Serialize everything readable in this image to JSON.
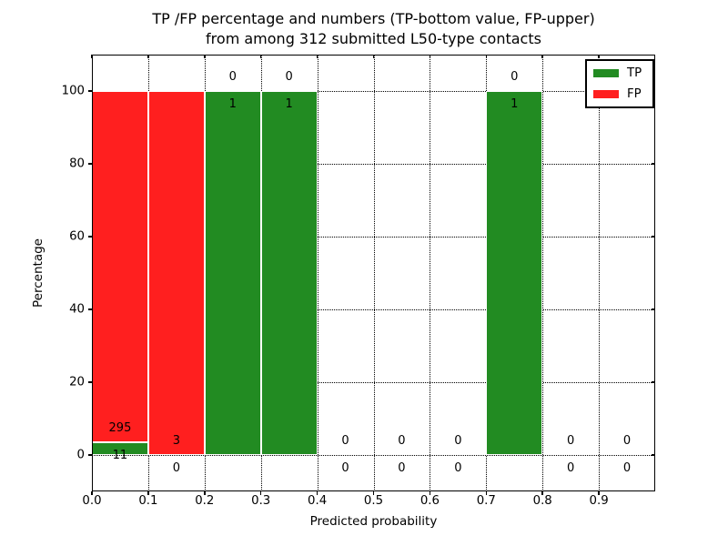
{
  "title": {
    "line1": "TP /FP percentage and numbers (TP-bottom value, FP-upper)",
    "line2": "from among 312 submitted L50-type contacts"
  },
  "chart_data": {
    "type": "bar",
    "stacked": true,
    "title": "TP /FP percentage and numbers (TP-bottom value, FP-upper) from among 312 submitted L50-type contacts",
    "xlabel": "Predicted probability",
    "ylabel": "Percentage",
    "xlim": [
      0.0,
      1.0
    ],
    "ylim": [
      -10,
      110
    ],
    "x_ticks": [
      "0.0",
      "0.1",
      "0.2",
      "0.3",
      "0.4",
      "0.5",
      "0.6",
      "0.7",
      "0.8",
      "0.9"
    ],
    "y_ticks": [
      "0",
      "20",
      "40",
      "60",
      "80",
      "100"
    ],
    "grid": "dotted",
    "total_contacts": 312,
    "legend": {
      "position": "upper-right",
      "entries": [
        {
          "label": "TP",
          "color": "#228b22"
        },
        {
          "label": "FP",
          "color": "#ff1f1f"
        }
      ]
    },
    "series": [
      {
        "name": "TP",
        "color": "#228b22",
        "counts": [
          11,
          0,
          1,
          1,
          0,
          0,
          0,
          1,
          0,
          0
        ]
      },
      {
        "name": "FP",
        "color": "#ff1f1f",
        "counts": [
          295,
          3,
          0,
          0,
          0,
          0,
          0,
          0,
          0,
          0
        ]
      }
    ],
    "bins": [
      {
        "range": [
          0.0,
          0.1
        ],
        "tp_count": 11,
        "fp_count": 295,
        "tp_pct": 3.6,
        "fp_pct": 96.4
      },
      {
        "range": [
          0.1,
          0.2
        ],
        "tp_count": 0,
        "fp_count": 3,
        "tp_pct": 0,
        "fp_pct": 100
      },
      {
        "range": [
          0.2,
          0.3
        ],
        "tp_count": 1,
        "fp_count": 0,
        "tp_pct": 100,
        "fp_pct": 0
      },
      {
        "range": [
          0.3,
          0.4
        ],
        "tp_count": 1,
        "fp_count": 0,
        "tp_pct": 100,
        "fp_pct": 0
      },
      {
        "range": [
          0.4,
          0.5
        ],
        "tp_count": 0,
        "fp_count": 0,
        "tp_pct": 0,
        "fp_pct": 0
      },
      {
        "range": [
          0.5,
          0.6
        ],
        "tp_count": 0,
        "fp_count": 0,
        "tp_pct": 0,
        "fp_pct": 0
      },
      {
        "range": [
          0.6,
          0.7
        ],
        "tp_count": 0,
        "fp_count": 0,
        "tp_pct": 0,
        "fp_pct": 0
      },
      {
        "range": [
          0.7,
          0.8
        ],
        "tp_count": 1,
        "fp_count": 0,
        "tp_pct": 100,
        "fp_pct": 0
      },
      {
        "range": [
          0.8,
          0.9
        ],
        "tp_count": 0,
        "fp_count": 0,
        "tp_pct": 0,
        "fp_pct": 0
      },
      {
        "range": [
          0.9,
          1.0
        ],
        "tp_count": 0,
        "fp_count": 0,
        "tp_pct": 0,
        "fp_pct": 0
      }
    ],
    "colors": {
      "tp": "#228b22",
      "fp": "#ff1f1f",
      "grid": "#000000",
      "frame": "#000000",
      "background": "#ffffff",
      "text": "#000000"
    }
  }
}
